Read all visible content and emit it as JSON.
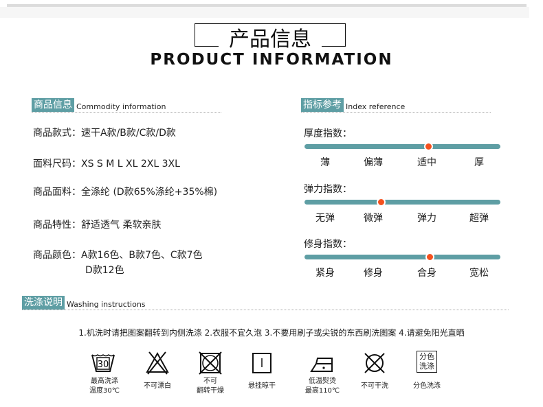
{
  "header": {
    "title_cn": "产品信息",
    "title_en": "PRODUCT INFORMATION"
  },
  "commodity": {
    "tag": "商品信息",
    "en": "Commodity information",
    "rows": [
      {
        "label": "商品款式：",
        "value": "速干A款/B款/C款/D款"
      },
      {
        "label": "面料尺码：",
        "value": "XS S M L XL 2XL 3XL"
      },
      {
        "label": "商品面料：",
        "value": "全涤纶  (D款65%涤纶+35%棉)"
      },
      {
        "label": "商品特性：",
        "value": "舒适透气  柔软亲肤"
      },
      {
        "label": "商品颜色：",
        "value": "A款16色、B款7色、C款7色",
        "value2": "D款12色"
      }
    ]
  },
  "index": {
    "tag": "指标参考",
    "en": "Index reference",
    "sliders": [
      {
        "label": "厚度指数：",
        "ticks": [
          "薄",
          "偏薄",
          "适中",
          "厚"
        ],
        "level": 0.63
      },
      {
        "label": "弹力指数：",
        "ticks": [
          "无弹",
          "微弹",
          "弹力",
          "超弹"
        ],
        "level": 0.39
      },
      {
        "label": "修身指数：",
        "ticks": [
          "紧身",
          "修身",
          "合身",
          "宽松"
        ],
        "level": 0.64
      }
    ],
    "colors": {
      "track": "#5e9ea4",
      "marker": "#f4511e"
    }
  },
  "washing": {
    "tag": "洗涤说明",
    "en": "Washing instructions",
    "text": "1.机洗时请把图案翻转到内侧洗涤  2.衣服不宜久泡  3.不要用刷子或尖锐的东西刷洗图案  4.请避免阳光直晒",
    "icons": [
      {
        "icon": "wash-30-icon",
        "tub_number": "30",
        "caption": [
          "最高洗涤",
          "温度30℃"
        ]
      },
      {
        "icon": "no-bleach-icon",
        "caption": [
          "不可漂白"
        ]
      },
      {
        "icon": "no-tumble-dry-icon",
        "caption": [
          "不可",
          "翻转干燥"
        ]
      },
      {
        "icon": "line-dry-icon",
        "caption": [
          "悬挂晾干"
        ]
      },
      {
        "icon": "low-iron-icon",
        "caption": [
          "低温熨烫",
          "最高110℃"
        ]
      },
      {
        "icon": "no-dry-clean-icon",
        "caption": [
          "不可干洗"
        ]
      },
      {
        "icon": "separate-wash-icon",
        "badge": [
          "分色",
          "洗涤"
        ],
        "caption": [
          "分色洗涤"
        ]
      }
    ]
  }
}
